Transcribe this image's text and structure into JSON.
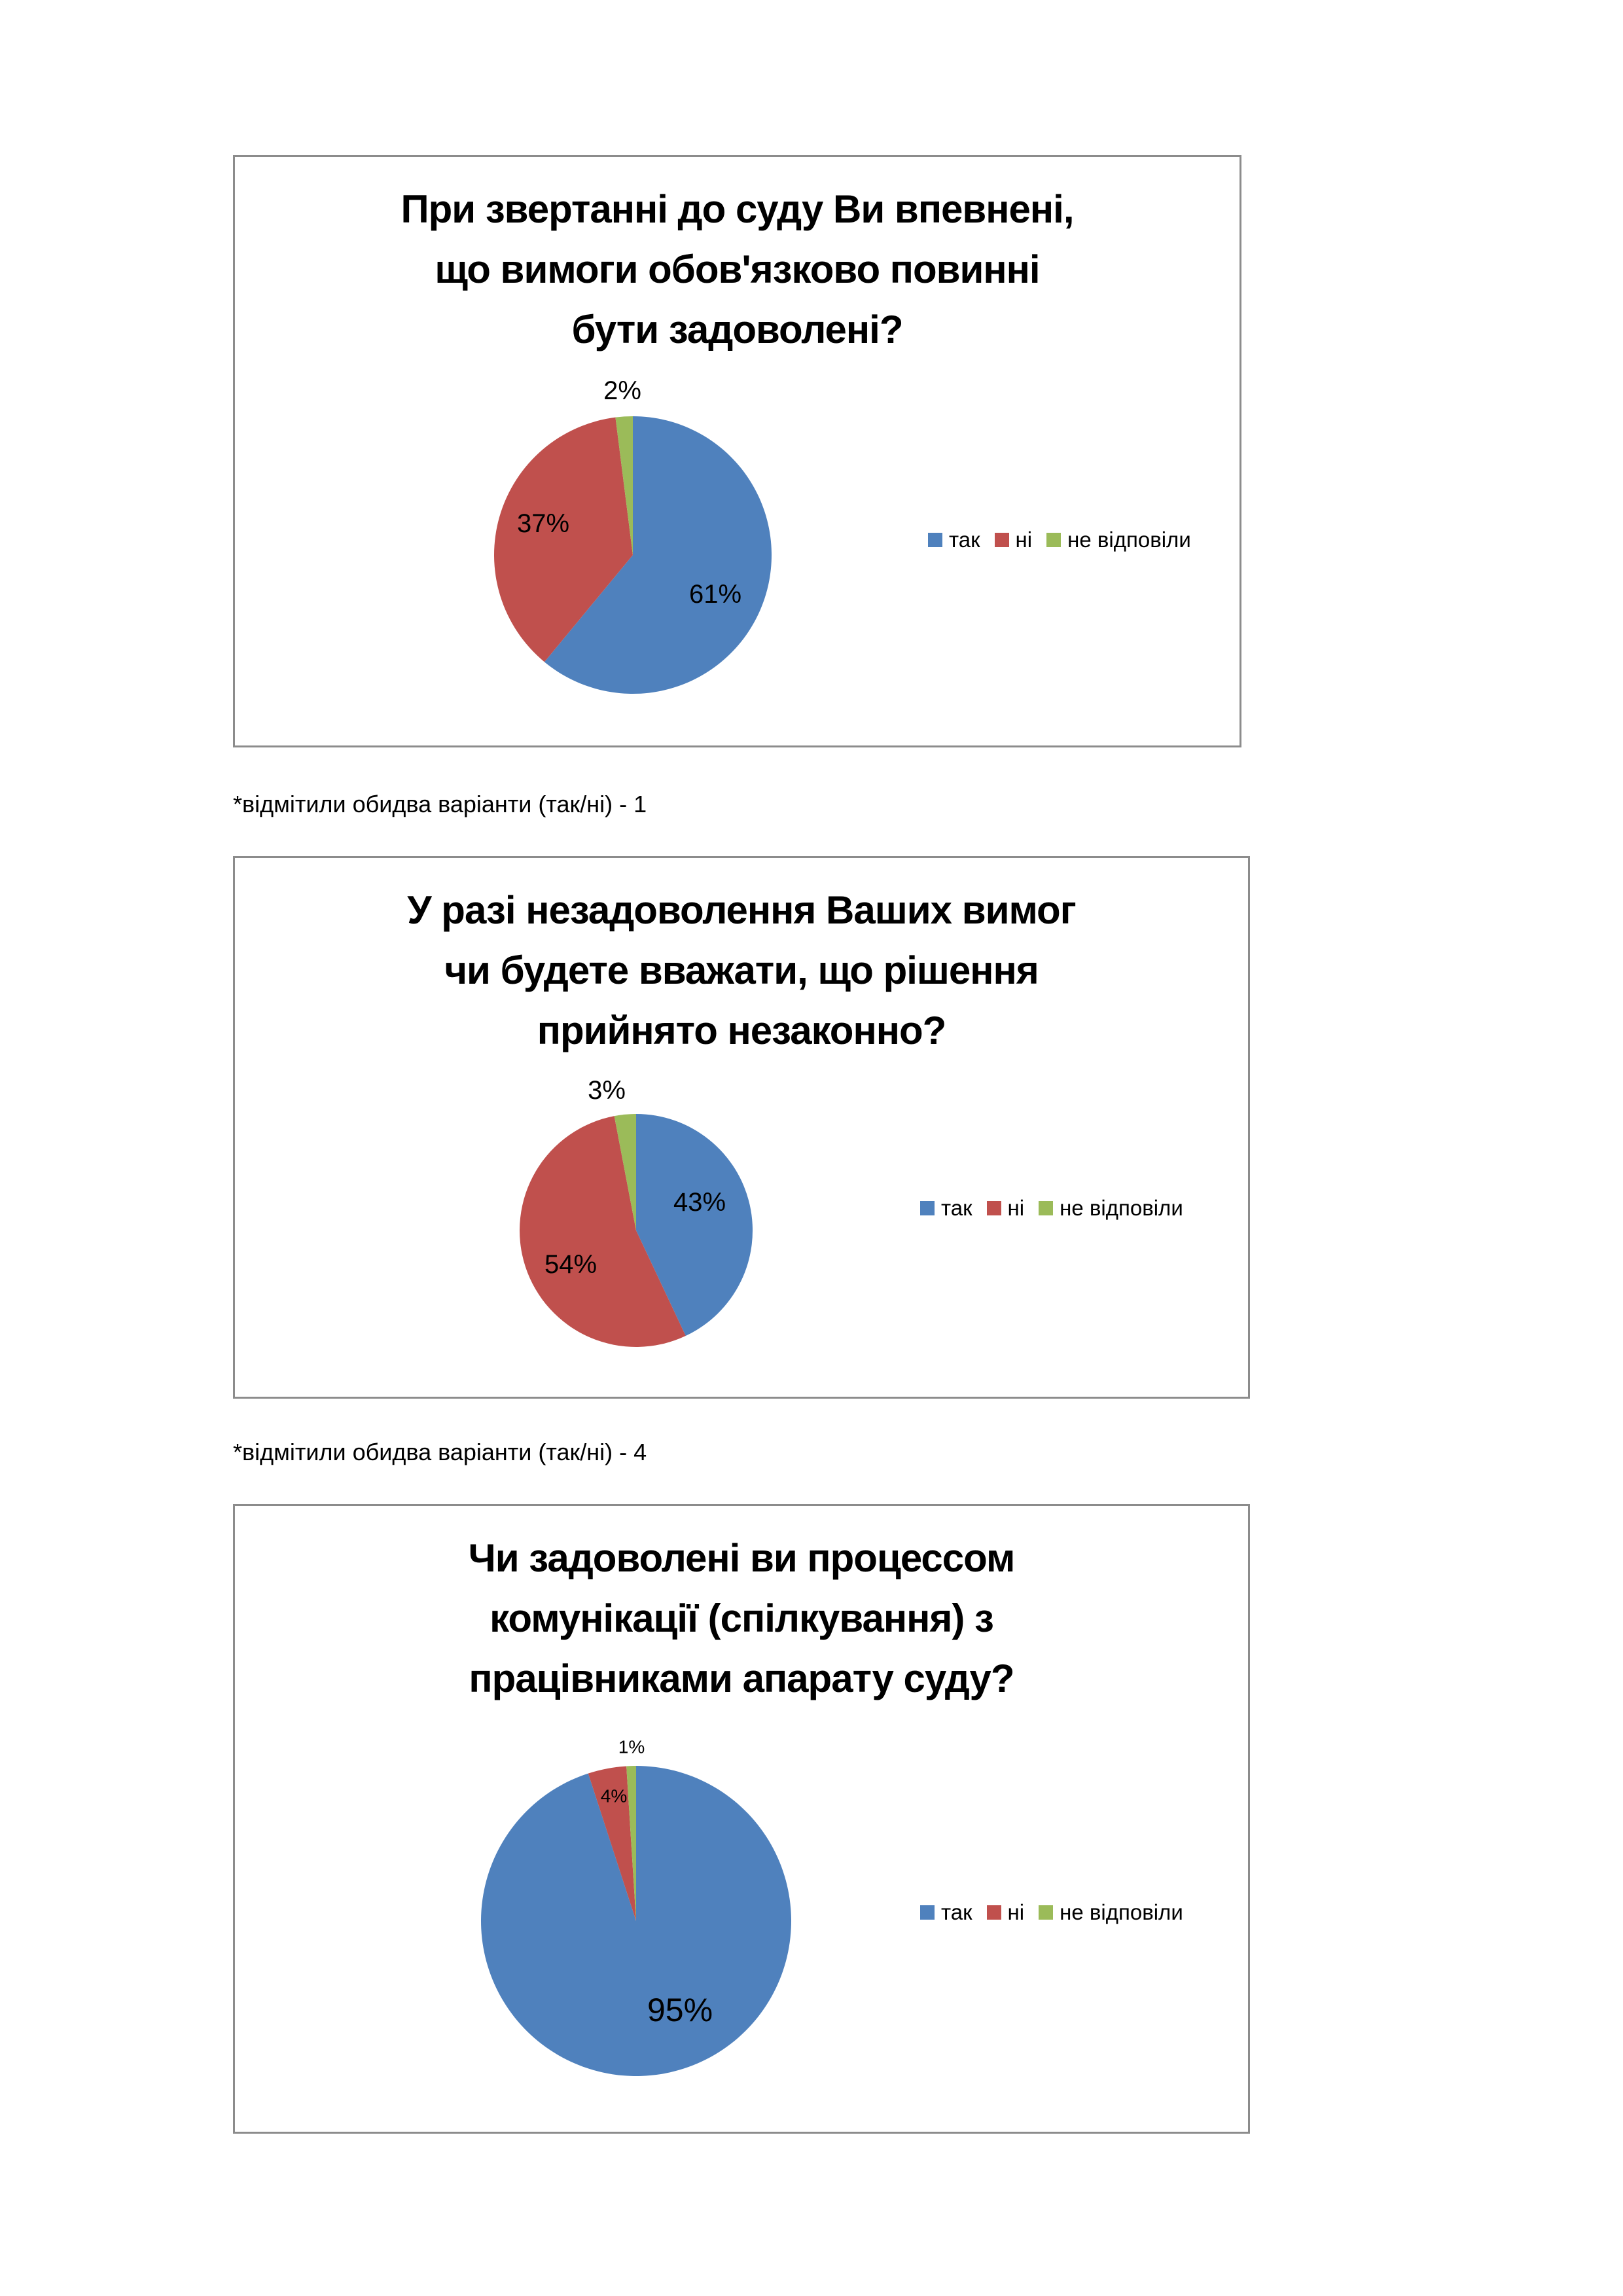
{
  "colors": {
    "tak": "#4F81BD",
    "ni": "#C0504D",
    "ne_vidpovily": "#9BBB59"
  },
  "chart_data": [
    {
      "type": "pie",
      "title": "При звертанні до суду Ви впевнені, що вимоги обов'язково повинні бути задоволені?",
      "title_lines": [
        "При звертанні до суду Ви впевнені,",
        "що вимоги обов'язково повинні",
        "бути задоволені?"
      ],
      "categories": [
        "так",
        "ні",
        "не відповіли"
      ],
      "values": [
        61,
        37,
        2
      ],
      "labels": [
        "61%",
        "37%",
        "2%"
      ],
      "legend_position": "right"
    },
    {
      "type": "pie",
      "title": "У разі незадоволення Ваших вимог чи будете вважати, що рішення прийнято незаконно?",
      "title_lines": [
        "У разі незадоволення Ваших вимог",
        "чи будете вважати, що рішення",
        "прийнято незаконно?"
      ],
      "categories": [
        "так",
        "ні",
        "не відповіли"
      ],
      "values": [
        43,
        54,
        3
      ],
      "labels": [
        "43%",
        "54%",
        "3%"
      ],
      "legend_position": "right"
    },
    {
      "type": "pie",
      "title": "Чи задоволені ви процессом комунікації (спілкування) з працівниками апарату суду?",
      "title_lines": [
        "Чи задоволені ви процессом",
        "комунікації (спілкування) з",
        "працівниками апарату суду?"
      ],
      "categories": [
        "так",
        "ні",
        "не відповіли"
      ],
      "values": [
        95,
        4,
        1
      ],
      "labels": [
        "95%",
        "4%",
        "1%"
      ],
      "legend_position": "right"
    }
  ],
  "notes": [
    "*відмітили обидва варіанти (так/ні)  - 1",
    "*відмітили обидва варіанти (так/ні)  - 4"
  ]
}
